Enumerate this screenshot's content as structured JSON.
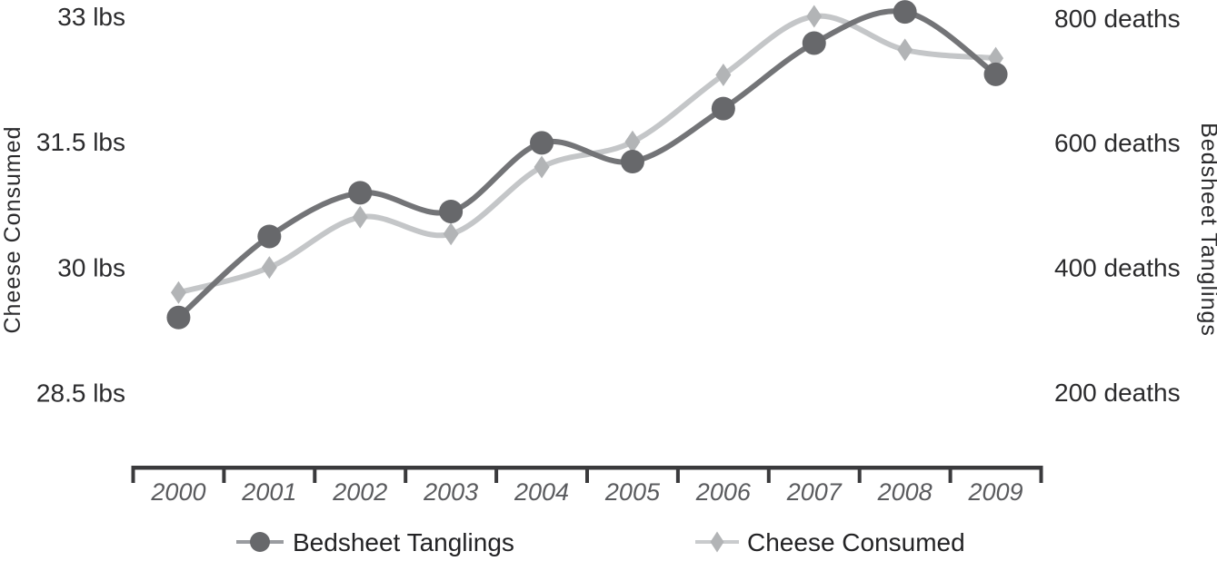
{
  "chart_data": {
    "type": "line",
    "title": "",
    "x_labels": [
      "2000",
      "2001",
      "2002",
      "2003",
      "2004",
      "2005",
      "2006",
      "2007",
      "2008",
      "2009"
    ],
    "series": [
      {
        "name": "Bedsheet Tanglings",
        "axis": "right",
        "marker": "circle",
        "line_color": "#737477",
        "marker_color": "#67686b",
        "values": [
          320,
          450,
          520,
          490,
          600,
          570,
          655,
          760,
          810,
          710
        ]
      },
      {
        "name": "Cheese Consumed",
        "axis": "left",
        "marker": "diamond",
        "line_color": "#c4c6c8",
        "marker_color": "#b2b4b6",
        "values": [
          29.7,
          30.0,
          30.6,
          30.4,
          31.2,
          31.5,
          32.3,
          33.0,
          32.6,
          32.5
        ]
      }
    ],
    "left_axis": {
      "title": "Cheese Consumed",
      "unit": "lbs",
      "range": [
        28.5,
        33
      ],
      "ticks": [
        {
          "value": 33,
          "label": "33 lbs"
        },
        {
          "value": 31.5,
          "label": "31.5 lbs"
        },
        {
          "value": 30,
          "label": "30 lbs"
        },
        {
          "value": 28.5,
          "label": "28.5 lbs"
        }
      ]
    },
    "right_axis": {
      "title": "Bedsheet Tanglings",
      "unit": "deaths",
      "range": [
        200,
        800
      ],
      "ticks": [
        {
          "value": 800,
          "label": "800 deaths"
        },
        {
          "value": 600,
          "label": "600 deaths"
        },
        {
          "value": 400,
          "label": "400 deaths"
        },
        {
          "value": 200,
          "label": "200 deaths"
        }
      ]
    },
    "legend": [
      {
        "label": "Bedsheet Tanglings",
        "marker": "circle"
      },
      {
        "label": "Cheese Consumed",
        "marker": "diamond"
      }
    ],
    "grid": false,
    "legend_position": "bottom"
  },
  "colors": {
    "background": "#ffffff",
    "axis_line": "#3a3a3c",
    "year_label": "#5a5b5e",
    "axis_text": "#2b2b2d",
    "legend_text": "#232325",
    "legend_line_dark": "#9a9ca0",
    "legend_line_light": "#c9cbcd"
  }
}
